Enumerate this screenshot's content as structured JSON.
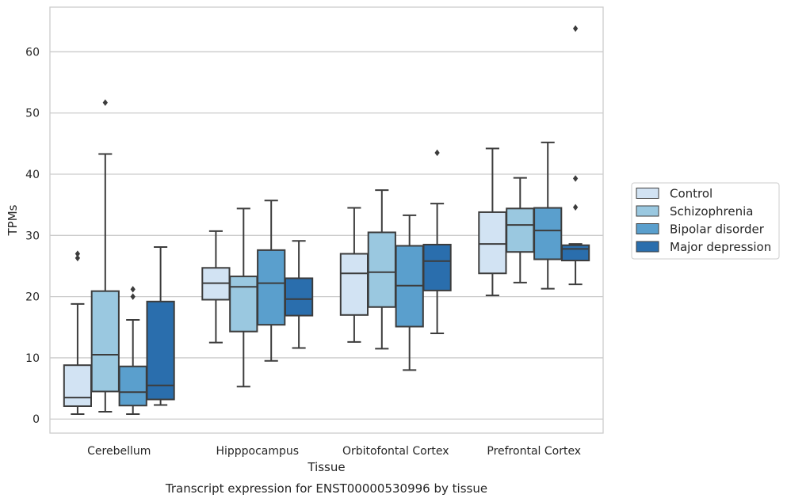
{
  "chart_data": {
    "type": "box",
    "title": "Transcript expression for ENST00000530996 by tissue",
    "xlabel": "Tissue",
    "ylabel": "TPMs",
    "ylim": [
      -2.3,
      67.3
    ],
    "yticks": [
      0,
      10,
      20,
      30,
      40,
      50,
      60
    ],
    "grid": true,
    "legend_position": "right",
    "categories": [
      "Cerebellum",
      "Hipppocampus",
      "Orbitofontal Cortex",
      "Prefrontal Cortex"
    ],
    "series": [
      {
        "name": "Control",
        "color": "#d2e3f3",
        "boxes": [
          {
            "whisker_low": 0.8,
            "q1": 2.1,
            "median": 3.5,
            "q3": 8.8,
            "whisker_high": 18.8,
            "outliers": [
              26.3,
              27.0
            ]
          },
          {
            "whisker_low": 12.5,
            "q1": 19.5,
            "median": 22.2,
            "q3": 24.7,
            "whisker_high": 30.7,
            "outliers": []
          },
          {
            "whisker_low": 12.6,
            "q1": 17.0,
            "median": 23.8,
            "q3": 27.0,
            "whisker_high": 34.5,
            "outliers": []
          },
          {
            "whisker_low": 20.2,
            "q1": 23.8,
            "median": 28.6,
            "q3": 33.8,
            "whisker_high": 44.2,
            "outliers": []
          }
        ]
      },
      {
        "name": "Schizophrenia",
        "color": "#9ac8e0",
        "boxes": [
          {
            "whisker_low": 1.2,
            "q1": 4.5,
            "median": 10.5,
            "q3": 20.9,
            "whisker_high": 43.3,
            "outliers": [
              51.7
            ]
          },
          {
            "whisker_low": 5.3,
            "q1": 14.3,
            "median": 21.6,
            "q3": 23.3,
            "whisker_high": 34.4,
            "outliers": []
          },
          {
            "whisker_low": 11.5,
            "q1": 18.3,
            "median": 24.0,
            "q3": 30.5,
            "whisker_high": 37.4,
            "outliers": []
          },
          {
            "whisker_low": 22.3,
            "q1": 27.3,
            "median": 31.7,
            "q3": 34.4,
            "whisker_high": 39.4,
            "outliers": []
          }
        ]
      },
      {
        "name": "Bipolar disorder",
        "color": "#5a9fcd",
        "boxes": [
          {
            "whisker_low": 0.8,
            "q1": 2.2,
            "median": 4.4,
            "q3": 8.6,
            "whisker_high": 16.2,
            "outliers": [
              20.0,
              21.2
            ]
          },
          {
            "whisker_low": 9.5,
            "q1": 15.4,
            "median": 22.2,
            "q3": 27.6,
            "whisker_high": 35.7,
            "outliers": []
          },
          {
            "whisker_low": 8.0,
            "q1": 15.1,
            "median": 21.8,
            "q3": 28.3,
            "whisker_high": 33.3,
            "outliers": []
          },
          {
            "whisker_low": 21.3,
            "q1": 26.1,
            "median": 30.8,
            "q3": 34.5,
            "whisker_high": 45.2,
            "outliers": []
          }
        ]
      },
      {
        "name": "Major depression",
        "color": "#2a6ead",
        "boxes": [
          {
            "whisker_low": 2.3,
            "q1": 3.2,
            "median": 5.5,
            "q3": 19.2,
            "whisker_high": 28.1,
            "outliers": []
          },
          {
            "whisker_low": 11.6,
            "q1": 16.9,
            "median": 19.6,
            "q3": 23.0,
            "whisker_high": 29.1,
            "outliers": []
          },
          {
            "whisker_low": 14.0,
            "q1": 21.0,
            "median": 25.8,
            "q3": 28.5,
            "whisker_high": 35.2,
            "outliers": [
              43.5
            ]
          },
          {
            "whisker_low": 22.0,
            "q1": 25.9,
            "median": 27.8,
            "q3": 28.4,
            "whisker_high": 28.6,
            "outliers": [
              34.6,
              39.3,
              63.8
            ]
          }
        ]
      }
    ]
  }
}
